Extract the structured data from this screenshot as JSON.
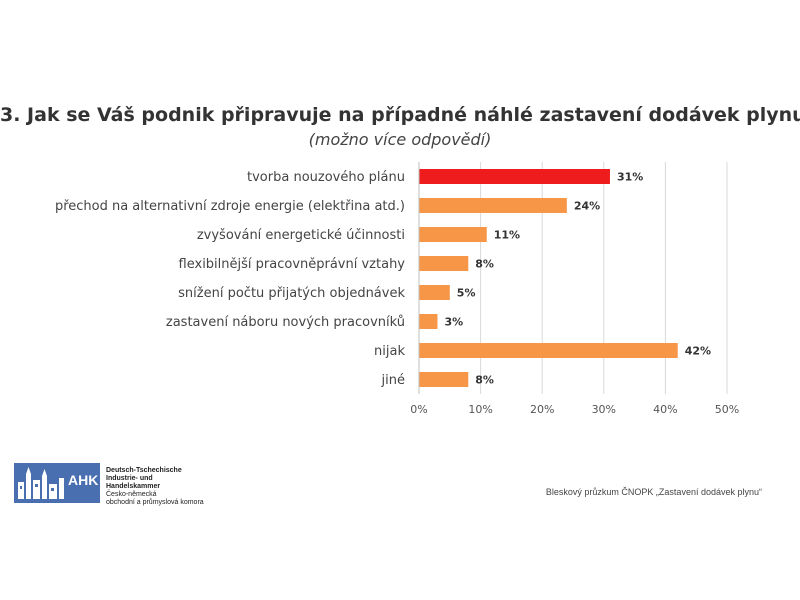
{
  "chart_data": {
    "type": "bar",
    "orientation": "horizontal",
    "title": "3. Jak se Váš podnik připravuje na případné náhlé zastavení dodávek plynu?",
    "subtitle": "(možno více odpovědí)",
    "categories": [
      "tvorba nouzového plánu",
      "přechod na alternativní zdroje energie (elektřina atd.)",
      "zvyšování energetické účinnosti",
      "flexibilnější pracovněprávní vztahy",
      "snížení počtu přijatých objednávek",
      "zastavení náboru nových pracovníků",
      "nijak",
      "jiné"
    ],
    "values": [
      31,
      24,
      11,
      8,
      5,
      3,
      42,
      8
    ],
    "value_labels": [
      "31%",
      "24%",
      "11%",
      "8%",
      "5%",
      "3%",
      "42%",
      "8%"
    ],
    "bar_colors": [
      "#ee1c1c",
      "#f79646",
      "#f79646",
      "#f79646",
      "#f79646",
      "#f79646",
      "#f79646",
      "#f79646"
    ],
    "xlim": [
      0,
      50
    ],
    "xticks": [
      "0%",
      "10%",
      "20%",
      "30%",
      "40%",
      "50%"
    ],
    "grid": true,
    "legend": "none"
  },
  "logo": {
    "mark": "AHK",
    "lines": [
      "Deutsch-Tschechische",
      "Industrie- und Handelskammer",
      "Česko-německá",
      "obchodní a průmyslová komora"
    ],
    "brand_color": "#4a6fb0"
  },
  "footer": {
    "source": "Bleskový průzkum ČNOPK „Zastavení dodávek plynu“"
  }
}
